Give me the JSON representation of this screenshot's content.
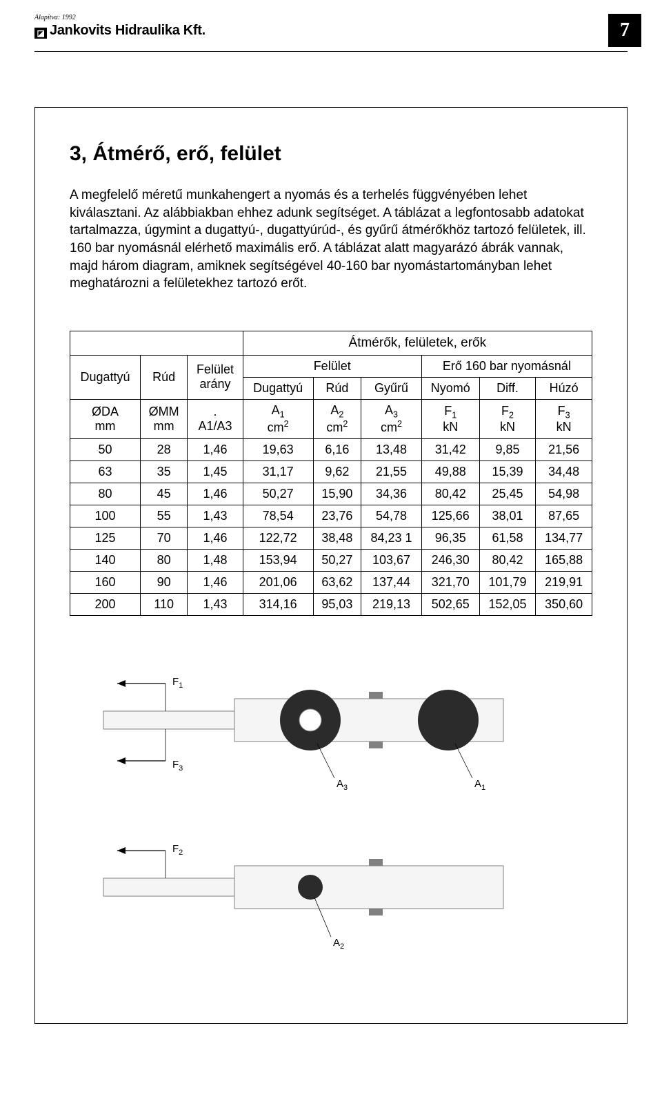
{
  "header": {
    "founding": "Alapítva: 1992",
    "company": "Jankovits Hidraulika Kft.",
    "page_number": "7"
  },
  "section": {
    "title": "3, Átmérő, erő, felület",
    "paragraph": "A megfelelő méretű munkahengert a nyomás és a terhelés függvényében lehet kiválasztani. Az alábbiakban ehhez adunk segítséget. A táblázat a legfontosabb adatokat tartalmazza, úgymint a dugattyú-, dugattyúrúd-, és gyűrű átmérőkhöz tartozó felületek, ill. 160 bar nyomásnál elérhető maximális erő. A táblázat alatt magyarázó ábrák vannak, majd három diagram, amiknek segítségével 40-160 bar nyomástartományban lehet meghatározni a felületekhez tartozó erőt."
  },
  "table": {
    "title": "Átmérők, felületek, erők",
    "top": {
      "c1": "Dugattyú",
      "c2": "Rúd",
      "c3a": "Felület",
      "c3b": "arány",
      "g1": "Felület",
      "g2": "Erő 160 bar nyomásnál",
      "s1": "Dugattyú",
      "s2": "Rúd",
      "s3": "Gyűrű",
      "s4": "Nyomó",
      "s5": "Diff.",
      "s6": "Húzó"
    },
    "units": {
      "u1a": "ØDA",
      "u1b": "mm",
      "u2a": "ØMM",
      "u2b": "mm",
      "u3a": ".",
      "u3b": "A1/A3",
      "u4a": "A",
      "u4b": "cm",
      "u5a": "A",
      "u5b": "cm",
      "u6a": "A",
      "u6b": "cm",
      "u7a": "F",
      "u7b": "kN",
      "u8a": "F",
      "u8b": "kN",
      "u9a": "F",
      "u9b": "kN"
    },
    "rows": [
      [
        "50",
        "28",
        "1,46",
        "19,63",
        "6,16",
        "13,48",
        "31,42",
        "9,85",
        "21,56"
      ],
      [
        "63",
        "35",
        "1,45",
        "31,17",
        "9,62",
        "21,55",
        "49,88",
        "15,39",
        "34,48"
      ],
      [
        "80",
        "45",
        "1,46",
        "50,27",
        "15,90",
        "34,36",
        "80,42",
        "25,45",
        "54,98"
      ],
      [
        "100",
        "55",
        "1,43",
        "78,54",
        "23,76",
        "54,78",
        "125,66",
        "38,01",
        "87,65"
      ],
      [
        "125",
        "70",
        "1,46",
        "122,72",
        "38,48",
        "84,23 1",
        "96,35",
        "61,58",
        "134,77"
      ],
      [
        "140",
        "80",
        "1,48",
        "153,94",
        "50,27",
        "103,67",
        "246,30",
        "80,42",
        "165,88"
      ],
      [
        "160",
        "90",
        "1,46",
        "201,06",
        "63,62",
        "137,44",
        "321,70",
        "101,79",
        "219,91"
      ],
      [
        "200",
        "110",
        "1,43",
        "314,16",
        "95,03",
        "219,13",
        "502,65",
        "152,05",
        "350,60"
      ]
    ]
  },
  "diagrams": {
    "colors": {
      "stroke": "#808080",
      "stroke_dark": "#000000",
      "fill_light": "#f5f5f5",
      "fill_dark": "#2b2b2b",
      "fill_mid": "#e8e8e8",
      "fill_white": "#ffffff"
    },
    "d1": {
      "labels": {
        "F1": "F ₁",
        "F3": "F ₃",
        "A3": "A₃",
        "A1": "A₁"
      }
    },
    "d2": {
      "labels": {
        "F2": "F ₂",
        "A2": "A₂"
      }
    }
  }
}
